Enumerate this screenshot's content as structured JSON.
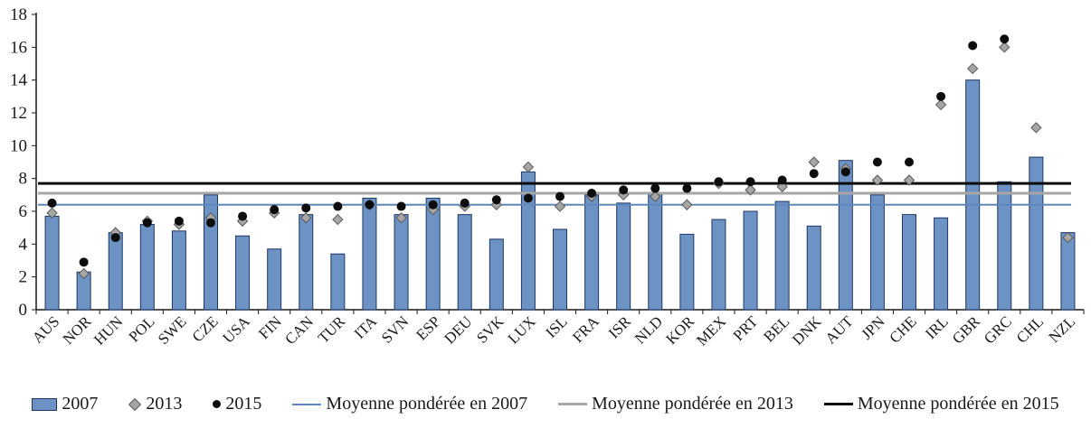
{
  "chart_data": {
    "type": "bar",
    "title": "",
    "xlabel": "",
    "ylabel": "",
    "ylim": [
      0,
      18
    ],
    "ytick_step": 2,
    "ytick_labels": [
      "0",
      "2",
      "4",
      "6",
      "8",
      "10",
      "12",
      "14",
      "16",
      "18"
    ],
    "grid": false,
    "legend_position": "bottom",
    "categories": [
      "AUS",
      "NOR",
      "HUN",
      "POL",
      "SWE",
      "CZE",
      "USA",
      "FIN",
      "CAN",
      "TUR",
      "ITA",
      "SVN",
      "ESP",
      "DEU",
      "SVK",
      "LUX",
      "ISL",
      "FRA",
      "ISR",
      "NLD",
      "KOR",
      "MEX",
      "PRT",
      "BEL",
      "DNK",
      "AUT",
      "JPN",
      "CHE",
      "IRL",
      "GBR",
      "GRC",
      "CHL",
      "NZL"
    ],
    "series": [
      {
        "name": "2007",
        "marker": "bar",
        "color": "#6d92c4",
        "border_color": "#1f3864",
        "values": [
          5.7,
          2.3,
          4.7,
          5.2,
          4.8,
          7.0,
          4.5,
          3.7,
          5.8,
          3.4,
          6.8,
          5.8,
          6.8,
          5.8,
          4.3,
          8.4,
          4.9,
          7.0,
          6.5,
          7.1,
          4.6,
          5.5,
          6.0,
          6.6,
          5.1,
          9.1,
          7.0,
          5.8,
          5.6,
          14.0,
          7.8,
          9.3,
          4.7
        ]
      },
      {
        "name": "2013",
        "marker": "diamond",
        "color": "#a6a6a6",
        "border_color": "#595959",
        "values": [
          5.9,
          2.2,
          4.7,
          5.4,
          5.2,
          5.6,
          5.4,
          5.9,
          5.6,
          5.5,
          6.4,
          5.6,
          6.1,
          6.3,
          6.4,
          8.7,
          6.3,
          6.9,
          7.0,
          6.9,
          6.4,
          7.7,
          7.3,
          7.5,
          9.0,
          8.6,
          7.9,
          7.9,
          12.5,
          14.7,
          16.0,
          11.1,
          4.4
        ]
      },
      {
        "name": "2015",
        "marker": "dot",
        "color": "#0d0d0d",
        "border_color": "#0d0d0d",
        "values": [
          6.5,
          2.9,
          4.4,
          5.3,
          5.4,
          5.3,
          5.7,
          6.1,
          6.2,
          6.3,
          6.4,
          6.3,
          6.4,
          6.5,
          6.7,
          6.8,
          6.9,
          7.1,
          7.3,
          7.4,
          7.4,
          7.8,
          7.8,
          7.9,
          8.3,
          8.4,
          9.0,
          9.0,
          13.0,
          16.1,
          16.5,
          null,
          null
        ]
      }
    ],
    "reference_lines": [
      {
        "label": "Moyenne pondérée en 2007",
        "value": 6.4,
        "color": "#5f87ba",
        "width": 2
      },
      {
        "label": "Moyenne pondérée en 2013",
        "value": 7.1,
        "color": "#a6a6a6",
        "width": 3
      },
      {
        "label": "Moyenne pondérée en 2015",
        "value": 7.7,
        "color": "#0d0d0d",
        "width": 3
      }
    ]
  },
  "colors": {
    "bar_fill": "#6d92c4",
    "bar_border": "#1f3864",
    "avg_2007_line": "#5f87ba",
    "avg_2013_line": "#a6a6a6",
    "avg_2015_line": "#0d0d0d",
    "axis": "#1a1a1a"
  }
}
